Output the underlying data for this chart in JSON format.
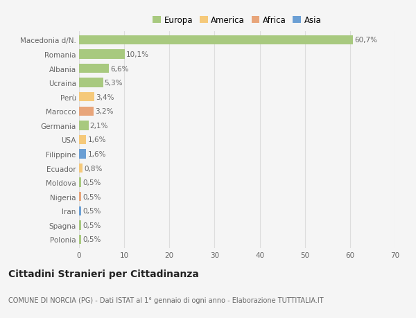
{
  "categories": [
    "Macedonia d/N.",
    "Romania",
    "Albania",
    "Ucraina",
    "Perù",
    "Marocco",
    "Germania",
    "USA",
    "Filippine",
    "Ecuador",
    "Moldova",
    "Nigeria",
    "Iran",
    "Spagna",
    "Polonia"
  ],
  "values": [
    60.7,
    10.1,
    6.6,
    5.3,
    3.4,
    3.2,
    2.1,
    1.6,
    1.6,
    0.8,
    0.5,
    0.5,
    0.5,
    0.5,
    0.5
  ],
  "labels": [
    "60,7%",
    "10,1%",
    "6,6%",
    "5,3%",
    "3,4%",
    "3,2%",
    "2,1%",
    "1,6%",
    "1,6%",
    "0,8%",
    "0,5%",
    "0,5%",
    "0,5%",
    "0,5%",
    "0,5%"
  ],
  "colors": [
    "#a8c97f",
    "#a8c97f",
    "#a8c97f",
    "#a8c97f",
    "#f5c97a",
    "#e8a57a",
    "#a8c97f",
    "#f5c97a",
    "#6b9fd4",
    "#f5c97a",
    "#a8c97f",
    "#e8a57a",
    "#6b9fd4",
    "#a8c97f",
    "#a8c97f"
  ],
  "legend_labels": [
    "Europa",
    "America",
    "Africa",
    "Asia"
  ],
  "legend_colors": [
    "#a8c97f",
    "#f5c97a",
    "#e8a57a",
    "#6b9fd4"
  ],
  "xlim": [
    0,
    70
  ],
  "xticks": [
    0,
    10,
    20,
    30,
    40,
    50,
    60,
    70
  ],
  "title": "Cittadini Stranieri per Cittadinanza",
  "subtitle": "COMUNE DI NORCIA (PG) - Dati ISTAT al 1° gennaio di ogni anno - Elaborazione TUTTITALIA.IT",
  "bg_color": "#f5f5f5",
  "bar_height": 0.65,
  "grid_color": "#dddddd",
  "label_fontsize": 7.5,
  "tick_fontsize": 7.5,
  "title_fontsize": 10,
  "subtitle_fontsize": 7,
  "legend_fontsize": 8.5
}
